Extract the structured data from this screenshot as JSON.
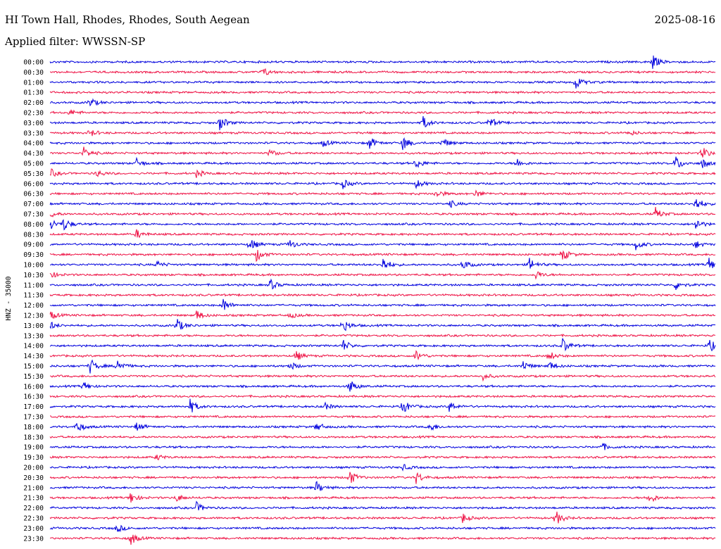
{
  "header": {
    "station": "HI Town Hall, Rhodes, Rhodes, South Aegean",
    "date": "2025-08-16",
    "filter": "Applied filter: WWSSN-SP"
  },
  "chart_data": {
    "type": "line",
    "description": "24h helicorder, one trace per 30 minutes",
    "ylabel": "HNZ - 35000",
    "colors": [
      "#0000dd",
      "#ee1144"
    ],
    "rows": [
      {
        "label": "00:00",
        "events": [
          [
            0.905,
            1.0
          ]
        ]
      },
      {
        "label": "00:30",
        "events": [
          [
            0.32,
            0.6
          ]
        ]
      },
      {
        "label": "01:00",
        "events": [
          [
            0.79,
            0.9
          ]
        ]
      },
      {
        "label": "01:30",
        "events": []
      },
      {
        "label": "02:00",
        "events": [
          [
            0.06,
            0.6
          ]
        ]
      },
      {
        "label": "02:30",
        "events": [
          [
            0.03,
            0.4
          ]
        ]
      },
      {
        "label": "03:00",
        "events": [
          [
            0.255,
            1.0
          ],
          [
            0.56,
            0.9
          ],
          [
            0.66,
            0.8
          ]
        ]
      },
      {
        "label": "03:30",
        "events": [
          [
            0.06,
            0.5
          ],
          [
            0.87,
            0.4
          ]
        ]
      },
      {
        "label": "04:00",
        "events": [
          [
            0.41,
            0.5
          ],
          [
            0.48,
            0.8
          ],
          [
            0.53,
            1.0
          ],
          [
            0.59,
            0.7
          ]
        ]
      },
      {
        "label": "04:30",
        "events": [
          [
            0.05,
            0.8
          ],
          [
            0.33,
            0.5
          ],
          [
            0.98,
            0.9
          ]
        ]
      },
      {
        "label": "05:00",
        "events": [
          [
            0.13,
            0.6
          ],
          [
            0.55,
            0.7
          ],
          [
            0.7,
            0.7
          ],
          [
            0.94,
            1.0
          ],
          [
            0.98,
            0.7
          ]
        ]
      },
      {
        "label": "05:30",
        "events": [
          [
            0.0,
            0.6
          ],
          [
            0.07,
            0.5
          ],
          [
            0.22,
            0.5
          ]
        ]
      },
      {
        "label": "06:00",
        "events": [
          [
            0.44,
            0.6
          ],
          [
            0.55,
            0.6
          ]
        ]
      },
      {
        "label": "06:30",
        "events": [
          [
            0.58,
            0.6
          ],
          [
            0.64,
            0.5
          ]
        ]
      },
      {
        "label": "07:00",
        "events": [
          [
            0.6,
            0.5
          ],
          [
            0.97,
            1.0
          ]
        ]
      },
      {
        "label": "07:30",
        "events": [
          [
            0.0,
            0.5
          ],
          [
            0.91,
            0.8
          ]
        ]
      },
      {
        "label": "08:00",
        "events": [
          [
            0.0,
            0.8
          ],
          [
            0.02,
            0.9
          ],
          [
            0.97,
            0.8
          ]
        ]
      },
      {
        "label": "08:30",
        "events": [
          [
            0.13,
            0.6
          ]
        ]
      },
      {
        "label": "09:00",
        "events": [
          [
            0.3,
            0.9
          ],
          [
            0.36,
            0.6
          ],
          [
            0.88,
            0.7
          ],
          [
            0.97,
            0.5
          ]
        ]
      },
      {
        "label": "09:30",
        "events": [
          [
            0.31,
            0.9
          ],
          [
            0.77,
            0.8
          ]
        ]
      },
      {
        "label": "10:00",
        "events": [
          [
            0.16,
            0.5
          ],
          [
            0.5,
            1.0
          ],
          [
            0.62,
            0.7
          ],
          [
            0.72,
            0.9
          ],
          [
            0.99,
            0.9
          ]
        ]
      },
      {
        "label": "10:30",
        "events": [
          [
            0.0,
            0.5
          ],
          [
            0.73,
            0.6
          ]
        ]
      },
      {
        "label": "11:00",
        "events": [
          [
            0.33,
            0.8
          ],
          [
            0.94,
            0.7
          ]
        ]
      },
      {
        "label": "11:30",
        "events": []
      },
      {
        "label": "12:00",
        "events": [
          [
            0.26,
            0.9
          ]
        ]
      },
      {
        "label": "12:30",
        "events": [
          [
            0.0,
            0.6
          ],
          [
            0.22,
            0.7
          ],
          [
            0.36,
            0.4
          ]
        ]
      },
      {
        "label": "13:00",
        "events": [
          [
            0.0,
            0.5
          ],
          [
            0.19,
            1.0
          ],
          [
            0.44,
            0.9
          ]
        ]
      },
      {
        "label": "13:30",
        "events": []
      },
      {
        "label": "14:00",
        "events": [
          [
            0.44,
            0.8
          ],
          [
            0.77,
            1.0
          ],
          [
            0.99,
            0.9
          ]
        ]
      },
      {
        "label": "14:30",
        "events": [
          [
            0.37,
            0.6
          ],
          [
            0.55,
            0.7
          ],
          [
            0.75,
            0.6
          ]
        ]
      },
      {
        "label": "15:00",
        "events": [
          [
            0.06,
            1.0
          ],
          [
            0.1,
            1.0
          ],
          [
            0.36,
            0.6
          ],
          [
            0.71,
            0.7
          ],
          [
            0.75,
            0.6
          ]
        ]
      },
      {
        "label": "15:30",
        "events": [
          [
            0.65,
            0.5
          ]
        ]
      },
      {
        "label": "16:00",
        "events": [
          [
            0.05,
            0.6
          ],
          [
            0.45,
            0.9
          ]
        ]
      },
      {
        "label": "16:30",
        "events": []
      },
      {
        "label": "17:00",
        "events": [
          [
            0.21,
            1.0
          ],
          [
            0.41,
            0.6
          ],
          [
            0.53,
            1.0
          ],
          [
            0.6,
            0.7
          ]
        ]
      },
      {
        "label": "17:30",
        "events": []
      },
      {
        "label": "18:00",
        "events": [
          [
            0.04,
            0.8
          ],
          [
            0.13,
            0.6
          ],
          [
            0.4,
            0.6
          ],
          [
            0.57,
            0.7
          ]
        ]
      },
      {
        "label": "18:30",
        "events": []
      },
      {
        "label": "19:00",
        "events": [
          [
            0.83,
            0.5
          ]
        ]
      },
      {
        "label": "19:30",
        "events": [
          [
            0.16,
            0.4
          ]
        ]
      },
      {
        "label": "20:00",
        "events": [
          [
            0.53,
            0.4
          ]
        ]
      },
      {
        "label": "20:30",
        "events": [
          [
            0.45,
            1.0
          ],
          [
            0.55,
            0.8
          ]
        ]
      },
      {
        "label": "21:00",
        "events": [
          [
            0.4,
            0.8
          ]
        ]
      },
      {
        "label": "21:30",
        "events": [
          [
            0.12,
            0.8
          ],
          [
            0.19,
            0.5
          ],
          [
            0.9,
            0.8
          ]
        ]
      },
      {
        "label": "22:00",
        "events": [
          [
            0.22,
            0.7
          ]
        ]
      },
      {
        "label": "22:30",
        "events": [
          [
            0.62,
            0.6
          ],
          [
            0.76,
            1.0
          ]
        ]
      },
      {
        "label": "23:00",
        "events": [
          [
            0.1,
            0.6
          ]
        ]
      },
      {
        "label": "23:30",
        "events": [
          [
            0.12,
            1.0
          ]
        ]
      }
    ]
  }
}
